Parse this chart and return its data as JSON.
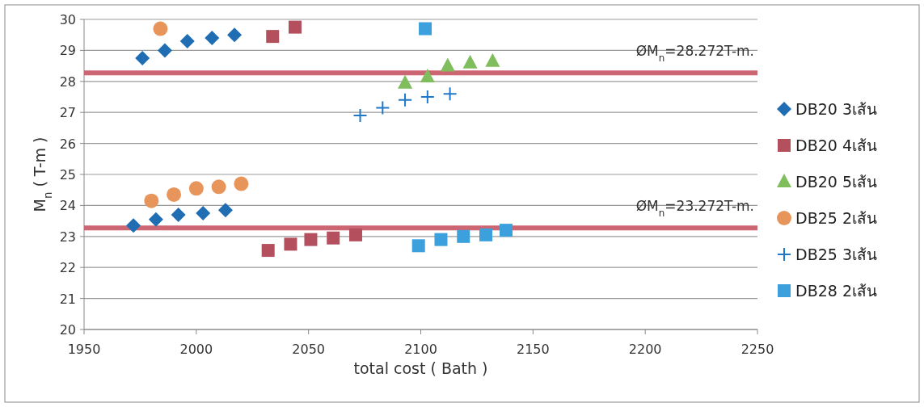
{
  "chart_data": {
    "type": "scatter",
    "xlabel": "total cost ( Bath )",
    "ylabel": "M$_{n}$ ( T-m )",
    "xlim": [
      1950,
      2250
    ],
    "xticks": [
      1950,
      2000,
      2050,
      2100,
      2150,
      2200,
      2250
    ],
    "ylim": [
      20,
      30
    ],
    "yticks": [
      20,
      21,
      22,
      23,
      24,
      25,
      26,
      27,
      28,
      29,
      30
    ],
    "grid": "y",
    "legend": "right",
    "ref_lines": [
      {
        "axis": "y",
        "value": 28.272,
        "color": "#cc6673"
      },
      {
        "axis": "y",
        "value": 23.272,
        "color": "#cc6673"
      }
    ],
    "annotations": [
      {
        "text": "ØM$_{n}$=28.272T-m.",
        "y": 28.272
      },
      {
        "text": "ØM$_{n}$=23.272T-m.",
        "y": 23.272
      }
    ],
    "series": [
      {
        "name": "DB20 3เส้น",
        "color": "#1f6db3",
        "marker": "diamond",
        "x": [
          1976,
          1986,
          1996,
          2007,
          2017,
          1972,
          1982,
          1992,
          2003,
          2013
        ],
        "values": [
          28.75,
          29.0,
          29.3,
          29.4,
          29.5,
          23.35,
          23.55,
          23.7,
          23.75,
          23.85
        ]
      },
      {
        "name": "DB20 4เส้น",
        "color": "#b4505e",
        "marker": "square",
        "x": [
          2034,
          2044,
          2032,
          2042,
          2051,
          2061,
          2071
        ],
        "values": [
          29.45,
          29.75,
          22.55,
          22.75,
          22.9,
          22.95,
          23.05
        ]
      },
      {
        "name": "DB20 5เส้น",
        "color": "#80bd5c",
        "marker": "triangle",
        "x": [
          2093,
          2103,
          2112,
          2122,
          2132
        ],
        "values": [
          27.95,
          28.15,
          28.5,
          28.6,
          28.65
        ]
      },
      {
        "name": "DB25 2เส้น",
        "color": "#e8955c",
        "marker": "circle",
        "x": [
          1984,
          1980,
          1990,
          2000,
          2010,
          2020
        ],
        "values": [
          29.7,
          24.15,
          24.35,
          24.55,
          24.6,
          24.7
        ]
      },
      {
        "name": "DB25 3เส้น",
        "color": "#1f78c8",
        "marker": "cross",
        "x": [
          2073,
          2083,
          2093,
          2103,
          2113
        ],
        "values": [
          26.9,
          27.15,
          27.4,
          27.5,
          27.6
        ]
      },
      {
        "name": "DB28 2เส้น",
        "color": "#3ba0dc",
        "marker": "square",
        "x": [
          2102,
          2099,
          2109,
          2119,
          2129,
          2138
        ],
        "values": [
          29.7,
          22.7,
          22.9,
          23.0,
          23.05,
          23.2
        ]
      }
    ]
  }
}
